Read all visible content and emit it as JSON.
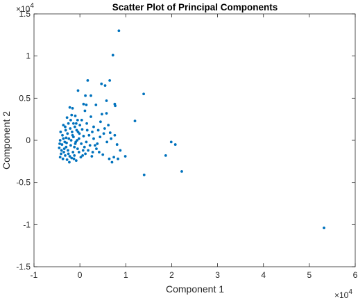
{
  "chart_data": {
    "type": "scatter",
    "title": "Scatter Plot of Principal Components",
    "xlabel": "Component 1",
    "ylabel": "Component 2",
    "xlim": [
      -1,
      6
    ],
    "ylim": [
      -1.5,
      1.5
    ],
    "x_ticks": [
      "-1",
      "0",
      "1",
      "2",
      "3",
      "4",
      "5",
      "6"
    ],
    "y_ticks": [
      "-1.5",
      "-1",
      "-0.5",
      "0",
      "0.5",
      "1",
      "1.5"
    ],
    "x_exponent": "×10",
    "x_exponent_power": "4",
    "y_exponent": "×10",
    "y_exponent_power": "4",
    "units_scale": 10000,
    "grid": false,
    "marker_color": "#0072BD",
    "points": [
      [
        5.32,
        -1.04
      ],
      [
        0.85,
        1.3
      ],
      [
        0.72,
        1.01
      ],
      [
        1.39,
        0.55
      ],
      [
        1.2,
        0.23
      ],
      [
        2.08,
        -0.05
      ],
      [
        1.99,
        -0.02
      ],
      [
        1.87,
        -0.18
      ],
      [
        2.22,
        -0.37
      ],
      [
        1.4,
        -0.41
      ],
      [
        0.17,
        0.71
      ],
      [
        0.65,
        0.71
      ],
      [
        0.47,
        0.67
      ],
      [
        0.55,
        0.65
      ],
      [
        -0.04,
        0.59
      ],
      [
        0.12,
        0.53
      ],
      [
        0.24,
        0.53
      ],
      [
        0.58,
        0.47
      ],
      [
        0.76,
        0.43
      ],
      [
        0.77,
        0.41
      ],
      [
        0.35,
        0.42
      ],
      [
        0.08,
        0.43
      ],
      [
        0.14,
        0.42
      ],
      [
        -0.16,
        0.38
      ],
      [
        -0.22,
        0.39
      ],
      [
        0.11,
        0.35
      ],
      [
        0.48,
        0.31
      ],
      [
        0.58,
        0.32
      ],
      [
        0.24,
        0.28
      ],
      [
        -0.1,
        0.29
      ],
      [
        -0.28,
        0.27
      ],
      [
        -0.05,
        0.24
      ],
      [
        0.45,
        0.22
      ],
      [
        0.62,
        0.18
      ],
      [
        0.54,
        0.14
      ],
      [
        0.4,
        0.12
      ],
      [
        -0.2,
        0.24
      ],
      [
        -0.14,
        0.2
      ],
      [
        0.0,
        0.18
      ],
      [
        0.15,
        0.2
      ],
      [
        0.3,
        0.16
      ],
      [
        0.66,
        0.09
      ],
      [
        0.76,
        0.06
      ],
      [
        0.68,
        0.02
      ],
      [
        0.59,
        -0.02
      ],
      [
        0.81,
        -0.05
      ],
      [
        0.88,
        -0.12
      ],
      [
        0.99,
        -0.19
      ],
      [
        0.74,
        -0.2
      ],
      [
        0.64,
        -0.22
      ],
      [
        0.7,
        -0.26
      ],
      [
        0.83,
        -0.22
      ],
      [
        0.33,
        -0.06
      ],
      [
        0.18,
        -0.12
      ],
      [
        0.06,
        -0.18
      ],
      [
        0.26,
        -0.19
      ],
      [
        0.42,
        -0.14
      ],
      [
        0.5,
        -0.17
      ],
      [
        -0.04,
        0.1
      ],
      [
        0.08,
        0.05
      ],
      [
        0.2,
        0.06
      ],
      [
        0.3,
        0.02
      ],
      [
        0.44,
        0.04
      ],
      [
        0.52,
        0.08
      ],
      [
        -0.32,
        0.16
      ],
      [
        -0.42,
        0.1
      ],
      [
        -0.36,
        0.02
      ],
      [
        -0.44,
        -0.04
      ],
      [
        -0.4,
        -0.12
      ],
      [
        -0.43,
        -0.2
      ],
      [
        -0.37,
        -0.22
      ],
      [
        -0.28,
        -0.23
      ],
      [
        -0.18,
        -0.21
      ],
      [
        -0.08,
        -0.24
      ],
      [
        0.02,
        -0.2
      ],
      [
        -0.25,
        -0.16
      ],
      [
        -0.15,
        -0.14
      ],
      [
        -0.05,
        -0.1
      ],
      [
        0.1,
        -0.08
      ],
      [
        -0.3,
        -0.08
      ],
      [
        -0.2,
        -0.06
      ],
      [
        -0.1,
        -0.04
      ],
      [
        -0.33,
        -0.02
      ],
      [
        -0.24,
        0.02
      ],
      [
        -0.14,
        0.04
      ],
      [
        -0.02,
        0.02
      ],
      [
        -0.27,
        0.08
      ],
      [
        -0.17,
        0.1
      ],
      [
        -0.07,
        0.12
      ],
      [
        -0.38,
        0.06
      ],
      [
        -0.35,
        -0.14
      ],
      [
        -0.26,
        -0.12
      ],
      [
        -0.12,
        -0.18
      ],
      [
        -0.22,
        -0.19
      ],
      [
        -0.32,
        -0.18
      ],
      [
        -0.41,
        -0.16
      ],
      [
        -0.45,
        -0.09
      ],
      [
        -0.39,
        -0.05
      ],
      [
        -0.29,
        -0.03
      ],
      [
        -0.19,
        0.0
      ],
      [
        -0.09,
        -0.02
      ],
      [
        0.03,
        -0.04
      ],
      [
        0.14,
        -0.02
      ],
      [
        0.22,
        -0.06
      ],
      [
        0.36,
        -0.1
      ],
      [
        -0.21,
        0.14
      ],
      [
        -0.11,
        0.16
      ],
      [
        -0.31,
        0.12
      ],
      [
        -0.01,
        0.08
      ],
      [
        0.05,
        0.13
      ],
      [
        -0.16,
        0.06
      ],
      [
        -0.06,
        0.0
      ],
      [
        0.07,
        -0.12
      ],
      [
        -0.34,
        -0.1
      ],
      [
        -0.23,
        -0.26
      ],
      [
        -0.13,
        -0.22
      ],
      [
        0.12,
        -0.16
      ],
      [
        0.28,
        -0.14
      ],
      [
        0.38,
        -0.04
      ],
      [
        0.27,
        0.1
      ],
      [
        -0.43,
        0.0
      ],
      [
        -0.36,
        0.18
      ],
      [
        -0.25,
        0.2
      ],
      [
        -0.08,
        0.2
      ],
      [
        0.04,
        0.24
      ],
      [
        -0.18,
        0.3
      ],
      [
        -0.3,
        0.03
      ],
      [
        -0.12,
        -0.08
      ],
      [
        -0.02,
        -0.14
      ],
      [
        0.16,
        0.12
      ]
    ]
  }
}
